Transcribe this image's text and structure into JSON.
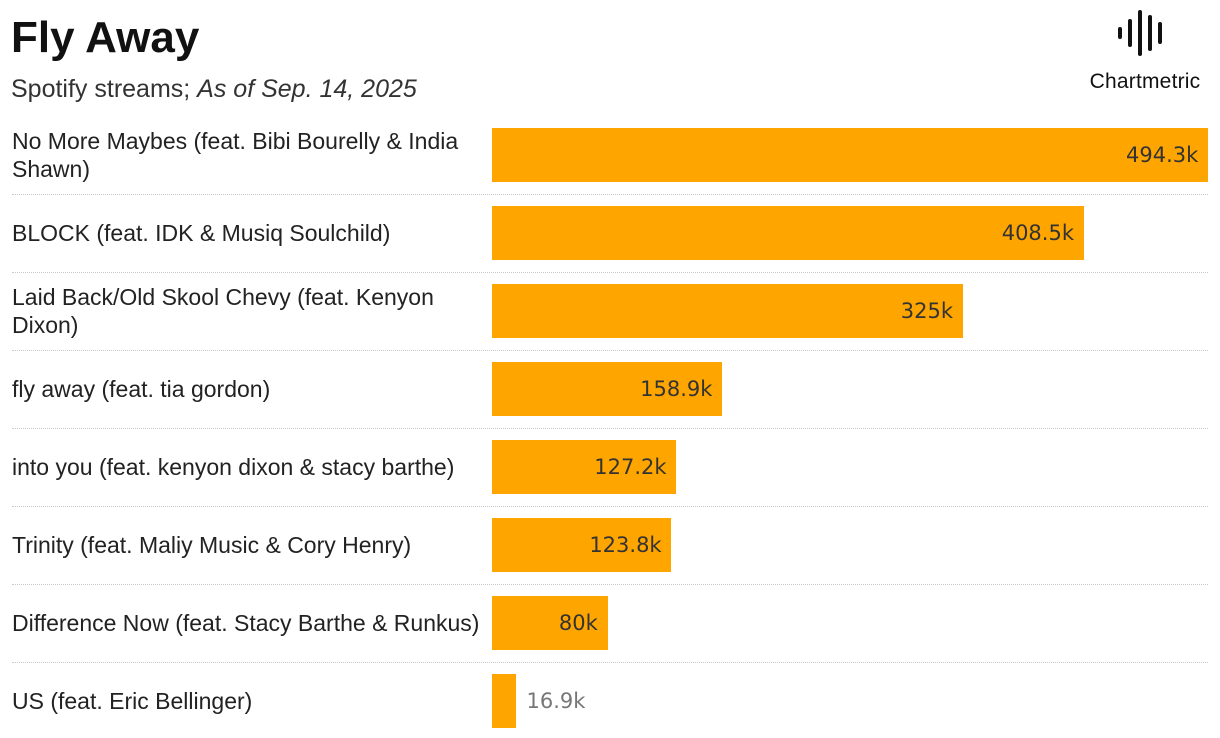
{
  "title": "Fly Away",
  "subtitle": {
    "prefix": "Spotify streams; ",
    "date": "As of Sep. 14, 2025"
  },
  "logo": {
    "text": "Chartmetric",
    "icon": "soundwave-icon"
  },
  "colors": {
    "bar": "#FFA500",
    "label_inside": "#333333",
    "label_outside": "#777777",
    "separator": "#c8c8c8"
  },
  "chart_data": {
    "type": "bar",
    "orientation": "horizontal",
    "categories": [
      "No More Maybes (feat. Bibi Bourelly & India Shawn)",
      "BLOCK (feat. IDK & Musiq Soulchild)",
      "Laid Back/Old Skool Chevy (feat. Kenyon Dixon)",
      "fly away (feat. tia gordon)",
      "into you (feat. kenyon dixon & stacy barthe)",
      "Trinity (feat. Maliy Music & Cory Henry)",
      "Difference Now (feat. Stacy Barthe & Runkus)",
      "US (feat. Eric Bellinger)"
    ],
    "values": [
      494300,
      408500,
      325000,
      158900,
      127200,
      123800,
      80000,
      16900
    ],
    "value_labels": [
      "494.3k",
      "408.5k",
      "325k",
      "158.9k",
      "127.2k",
      "123.8k",
      "80k",
      "16.9k"
    ],
    "xlim": [
      0,
      494300
    ],
    "grid": false,
    "legend": "none"
  }
}
